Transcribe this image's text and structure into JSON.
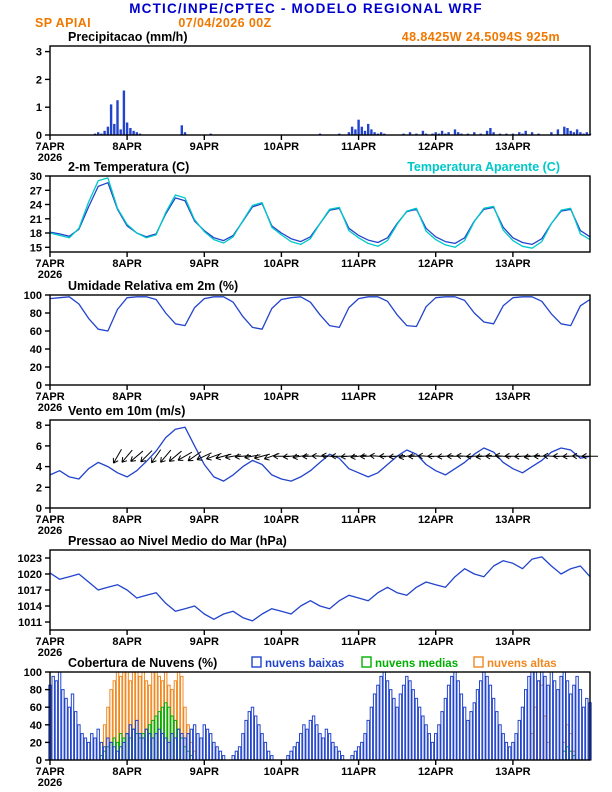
{
  "header": {
    "title": "MCTIC/INPE/CPTEC - MODELO REGIONAL WRF",
    "station": "SP APIAI",
    "datetime": "07/04/2026 00Z",
    "location": "48.8425W 24.5094S 925m"
  },
  "colors": {
    "blue": "#2244cc",
    "cyan": "#00c8c8",
    "green": "#00b000",
    "orange": "#f08820",
    "title_blue": "#0000cc",
    "header_orange": "#f07800",
    "black": "#000000"
  },
  "x_axis": {
    "labels": [
      "7APR",
      "8APR",
      "9APR",
      "10APR",
      "11APR",
      "12APR",
      "13APR"
    ],
    "label_hours": [
      0,
      24,
      48,
      72,
      96,
      120,
      144
    ],
    "year_label": "2026",
    "total_hours": 168
  },
  "chart_data": [
    {
      "id": "precipitation",
      "type": "bar",
      "title": "Precipitacao (mm/h)",
      "ylim": [
        0,
        3.2
      ],
      "yticks": [
        0,
        1,
        2,
        3
      ],
      "step_hours": 1,
      "color": "blue",
      "values": [
        0,
        0,
        0,
        0,
        0,
        0,
        0,
        0,
        0,
        0,
        0,
        0,
        0,
        0,
        0.05,
        0.1,
        0.05,
        0.15,
        0.3,
        1.1,
        0.4,
        1.25,
        0.2,
        1.6,
        0.45,
        0.25,
        0.15,
        0.1,
        0.05,
        0,
        0,
        0,
        0,
        0,
        0,
        0,
        0,
        0,
        0,
        0,
        0,
        0.35,
        0.1,
        0,
        0,
        0,
        0,
        0,
        0,
        0,
        0.05,
        0,
        0,
        0,
        0,
        0,
        0,
        0,
        0,
        0,
        0,
        0,
        0,
        0,
        0,
        0,
        0,
        0,
        0,
        0,
        0,
        0,
        0,
        0,
        0,
        0,
        0,
        0,
        0,
        0,
        0,
        0,
        0,
        0,
        0.05,
        0,
        0,
        0,
        0,
        0,
        0.05,
        0,
        0,
        0.1,
        0.3,
        0.2,
        0.55,
        0.3,
        0.15,
        0.4,
        0.2,
        0.1,
        0.05,
        0.1,
        0.05,
        0,
        0,
        0,
        0,
        0,
        0.05,
        0,
        0.1,
        0,
        0.05,
        0,
        0.15,
        0.05,
        0,
        0.05,
        0.1,
        0.05,
        0.15,
        0.05,
        0.1,
        0,
        0.2,
        0.1,
        0.05,
        0,
        0.05,
        0,
        0.1,
        0,
        0.05,
        0,
        0.15,
        0.25,
        0.1,
        0,
        0.05,
        0,
        0.05,
        0,
        0.05,
        0,
        0.1,
        0.05,
        0.15,
        0,
        0.1,
        0,
        0.05,
        0,
        0,
        0,
        0.1,
        0,
        0.2,
        0,
        0.3,
        0.25,
        0.15,
        0.1,
        0.2,
        0.1,
        0.05,
        0.1,
        0.05
      ]
    },
    {
      "id": "temperature",
      "type": "line",
      "title": "2-m Temperatura (C)",
      "right_label": "Temperatura Aparente (C)",
      "ylim": [
        14,
        30
      ],
      "yticks": [
        15,
        18,
        21,
        24,
        27,
        30
      ],
      "step_hours": 3,
      "series": [
        {
          "name": "2-m Temperatura (C)",
          "color": "blue",
          "values": [
            18.2,
            17.8,
            17.3,
            18.8,
            23.5,
            27.8,
            28.6,
            23.0,
            19.5,
            18.0,
            17.2,
            17.8,
            22.0,
            25.4,
            24.8,
            20.5,
            18.5,
            17.0,
            16.4,
            17.5,
            20.5,
            23.5,
            24.2,
            19.5,
            18.0,
            16.8,
            16.2,
            17.2,
            20.0,
            22.8,
            23.2,
            19.0,
            17.5,
            16.5,
            16.0,
            17.0,
            20.0,
            22.5,
            23.0,
            19.0,
            17.2,
            16.2,
            15.8,
            17.0,
            20.5,
            23.0,
            23.4,
            19.2,
            17.0,
            16.0,
            15.6,
            16.8,
            20.0,
            22.6,
            23.0,
            18.5,
            17.2
          ]
        },
        {
          "name": "Temperatura Aparente (C)",
          "color": "cyan",
          "values": [
            18.0,
            17.5,
            17.0,
            19.0,
            24.5,
            29.0,
            29.6,
            23.2,
            19.8,
            18.0,
            17.0,
            17.6,
            22.3,
            26.0,
            25.4,
            20.8,
            18.3,
            16.6,
            15.9,
            17.2,
            20.6,
            23.8,
            24.4,
            19.2,
            17.6,
            16.2,
            15.6,
            16.8,
            20.0,
            23.0,
            23.4,
            18.5,
            17.0,
            15.8,
            15.2,
            16.4,
            19.8,
            22.6,
            23.2,
            18.4,
            16.6,
            15.5,
            15.0,
            16.4,
            20.4,
            23.2,
            23.6,
            18.6,
            16.4,
            15.2,
            14.8,
            16.2,
            20.0,
            22.8,
            23.2,
            17.8,
            16.6
          ]
        }
      ]
    },
    {
      "id": "humidity",
      "type": "line",
      "title": "Umidade Relativa em 2m (%)",
      "ylim": [
        0,
        100
      ],
      "yticks": [
        0,
        20,
        40,
        60,
        80,
        100
      ],
      "step_hours": 3,
      "series": [
        {
          "name": "Umidade Relativa em 2m",
          "color": "blue",
          "values": [
            96,
            97,
            98,
            90,
            74,
            62,
            60,
            84,
            97,
            98,
            98,
            95,
            80,
            68,
            66,
            86,
            96,
            98,
            98,
            92,
            76,
            64,
            62,
            85,
            95,
            97,
            98,
            92,
            78,
            66,
            64,
            86,
            96,
            98,
            98,
            93,
            78,
            66,
            65,
            87,
            97,
            98,
            98,
            94,
            80,
            70,
            68,
            88,
            97,
            98,
            98,
            93,
            79,
            68,
            66,
            88,
            95
          ]
        }
      ]
    },
    {
      "id": "wind",
      "type": "line",
      "title": "Vento em 10m (m/s)",
      "ylim": [
        0,
        8.5
      ],
      "yticks": [
        0,
        2,
        4,
        6,
        8
      ],
      "step_hours": 3,
      "series": [
        {
          "name": "Vento em 10m",
          "color": "blue",
          "values": [
            3.2,
            3.6,
            3.0,
            2.8,
            3.8,
            4.4,
            4.0,
            3.4,
            3.0,
            3.6,
            4.5,
            5.5,
            6.8,
            7.6,
            7.8,
            6.0,
            4.2,
            3.0,
            2.6,
            3.2,
            4.0,
            4.6,
            4.2,
            3.2,
            2.8,
            2.6,
            3.0,
            3.6,
            4.4,
            5.2,
            4.8,
            3.8,
            3.4,
            3.0,
            3.4,
            4.2,
            5.0,
            5.6,
            5.2,
            4.2,
            3.6,
            3.2,
            3.8,
            4.4,
            5.2,
            5.8,
            5.4,
            4.4,
            3.8,
            3.4,
            4.0,
            4.6,
            5.4,
            5.8,
            5.6,
            4.8,
            5.0
          ]
        }
      ],
      "barbs": {
        "start_hour": 21,
        "step_hours": 3,
        "plot_value": 5,
        "color": "black",
        "dirs": [
          120,
          130,
          140,
          135,
          125,
          130,
          140,
          150,
          145,
          155,
          160,
          165,
          170,
          175,
          170,
          165,
          160,
          180,
          175,
          170,
          178,
          182,
          185,
          180,
          176,
          172,
          178,
          184,
          180,
          175,
          170,
          178,
          183,
          180,
          176,
          180,
          184,
          178,
          174,
          180,
          185,
          181,
          177,
          173,
          179,
          183,
          180,
          178,
          182,
          180
        ]
      }
    },
    {
      "id": "pressure",
      "type": "line",
      "title": "Pressao ao Nivel Medio do Mar (hPa)",
      "ylim": [
        1009.5,
        1024.5
      ],
      "yticks": [
        1011,
        1014,
        1017,
        1020,
        1023
      ],
      "step_hours": 3,
      "series": [
        {
          "name": "Pressao ao Nivel Medio do Mar",
          "color": "blue",
          "values": [
            1020.2,
            1019.0,
            1019.5,
            1020.0,
            1018.5,
            1017.0,
            1017.5,
            1018.0,
            1017.0,
            1015.5,
            1016.0,
            1016.5,
            1014.5,
            1013.0,
            1013.5,
            1014.0,
            1012.5,
            1011.5,
            1012.5,
            1013.0,
            1011.8,
            1011.2,
            1012.5,
            1013.5,
            1013.0,
            1012.5,
            1014.0,
            1015.0,
            1014.0,
            1013.5,
            1015.0,
            1016.0,
            1015.5,
            1015.0,
            1016.5,
            1017.5,
            1016.5,
            1016.0,
            1017.5,
            1018.5,
            1018.0,
            1017.5,
            1019.5,
            1021.0,
            1020.0,
            1019.5,
            1021.5,
            1022.5,
            1022.0,
            1021.0,
            1022.8,
            1023.2,
            1021.5,
            1020.0,
            1021.0,
            1021.5,
            1019.5
          ]
        }
      ]
    },
    {
      "id": "clouds",
      "type": "bar-multi",
      "title": "Cobertura de Nuvens (%)",
      "ylim": [
        0,
        100
      ],
      "yticks": [
        0,
        20,
        40,
        60,
        80,
        100
      ],
      "step_hours": 1,
      "series": [
        {
          "name": "nuvens baixas",
          "color": "blue",
          "values": [
            85,
            95,
            90,
            100,
            80,
            70,
            60,
            75,
            55,
            40,
            30,
            25,
            20,
            30,
            25,
            35,
            20,
            15,
            25,
            20,
            15,
            10,
            15,
            20,
            30,
            40,
            35,
            45,
            30,
            25,
            35,
            30,
            25,
            30,
            35,
            30,
            25,
            20,
            30,
            25,
            35,
            30,
            25,
            30,
            35,
            40,
            30,
            25,
            40,
            35,
            30,
            20,
            15,
            10,
            5,
            0,
            0,
            5,
            10,
            15,
            30,
            45,
            55,
            60,
            50,
            40,
            30,
            20,
            10,
            5,
            0,
            0,
            0,
            0,
            5,
            10,
            15,
            20,
            30,
            40,
            35,
            45,
            50,
            40,
            30,
            25,
            35,
            30,
            20,
            15,
            10,
            5,
            0,
            0,
            5,
            10,
            15,
            20,
            30,
            45,
            60,
            75,
            85,
            95,
            100,
            90,
            80,
            70,
            60,
            75,
            85,
            95,
            90,
            80,
            70,
            60,
            50,
            40,
            30,
            20,
            30,
            40,
            55,
            70,
            85,
            95,
            100,
            90,
            75,
            60,
            45,
            55,
            65,
            80,
            90,
            100,
            95,
            85,
            70,
            55,
            40,
            30,
            20,
            15,
            20,
            30,
            45,
            60,
            80,
            95,
            100,
            100,
            90,
            100,
            95,
            85,
            100,
            90,
            80,
            95,
            100,
            90,
            75,
            85,
            95,
            80,
            60,
            70,
            65
          ]
        },
        {
          "name": "nuvens medias",
          "color": "green",
          "values": [
            0,
            0,
            0,
            0,
            0,
            0,
            0,
            0,
            0,
            0,
            0,
            0,
            0,
            0,
            0,
            0,
            5,
            10,
            15,
            20,
            25,
            20,
            30,
            25,
            30,
            25,
            35,
            30,
            25,
            30,
            35,
            40,
            45,
            50,
            55,
            60,
            65,
            60,
            50,
            45,
            35,
            25,
            15,
            10,
            5,
            0,
            0,
            0,
            0,
            0,
            0,
            0,
            0,
            0,
            0,
            0,
            0,
            0,
            0,
            0,
            0,
            0,
            0,
            0,
            0,
            0,
            0,
            0,
            0,
            0,
            0,
            0,
            0,
            0,
            0,
            0,
            0,
            0,
            0,
            0,
            0,
            0,
            0,
            0,
            0,
            0,
            0,
            0,
            0,
            0,
            0,
            0,
            0,
            0,
            0,
            0,
            0,
            0,
            0,
            0,
            0,
            0,
            0,
            0,
            0,
            0,
            0,
            0,
            0,
            0,
            0,
            0,
            0,
            0,
            0,
            0,
            0,
            0,
            0,
            0,
            0,
            0,
            0,
            0,
            0,
            0,
            0,
            0,
            0,
            0,
            0,
            0,
            0,
            0,
            0,
            0,
            0,
            0,
            0,
            0,
            0,
            0,
            0,
            0,
            0,
            0,
            0,
            0,
            0,
            0,
            0,
            0,
            0,
            0,
            0,
            0,
            0,
            0,
            0,
            0,
            10,
            15,
            10,
            5,
            0,
            0,
            0,
            0,
            0
          ]
        },
        {
          "name": "nuvens altas",
          "color": "orange",
          "values": [
            0,
            0,
            0,
            0,
            0,
            0,
            0,
            0,
            0,
            0,
            0,
            0,
            0,
            0,
            0,
            0,
            0,
            40,
            60,
            80,
            90,
            100,
            95,
            100,
            100,
            90,
            100,
            100,
            95,
            100,
            90,
            85,
            100,
            100,
            95,
            90,
            100,
            85,
            80,
            90,
            100,
            95,
            60,
            40,
            20,
            10,
            0,
            0,
            0,
            0,
            0,
            0,
            0,
            0,
            0,
            0,
            0,
            0,
            0,
            0,
            0,
            0,
            0,
            0,
            0,
            0,
            0,
            0,
            0,
            0,
            0,
            0,
            0,
            0,
            0,
            0,
            0,
            0,
            0,
            0,
            0,
            0,
            0,
            0,
            0,
            0,
            0,
            0,
            0,
            0,
            0,
            0,
            0,
            0,
            0,
            0,
            0,
            0,
            0,
            0,
            0,
            0,
            0,
            0,
            0,
            0,
            0,
            0,
            0,
            0,
            0,
            0,
            0,
            0,
            0,
            0,
            0,
            0,
            0,
            0,
            0,
            0,
            0,
            0,
            0,
            0,
            0,
            0,
            0,
            0,
            0,
            0,
            0,
            0,
            0,
            0,
            0,
            0,
            0,
            0,
            0,
            0,
            0,
            0,
            0,
            0,
            0,
            0,
            0,
            0,
            30,
            60,
            90,
            85,
            50,
            20,
            0,
            0,
            0,
            0,
            20,
            40,
            30,
            10,
            0,
            0,
            0,
            0,
            0
          ]
        }
      ]
    }
  ]
}
